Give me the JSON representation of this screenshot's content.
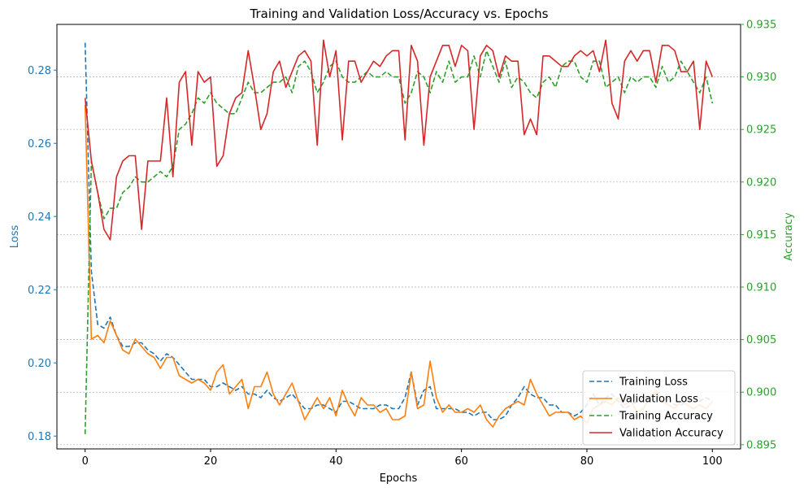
{
  "chart_data": {
    "type": "line",
    "title": "Training and Validation Loss/Accuracy vs. Epochs",
    "xlabel": "Epochs",
    "ylabel_left": "Loss",
    "ylabel_right": "Accuracy",
    "xlim": [
      -4.5,
      104.5
    ],
    "ylim_left": [
      0.1765,
      0.2925
    ],
    "ylim_right": [
      0.8946,
      0.935
    ],
    "xticks": [
      0,
      20,
      40,
      60,
      80,
      100
    ],
    "yticks_left": [
      0.18,
      0.2,
      0.22,
      0.24,
      0.26,
      0.28
    ],
    "yticks_right": [
      0.895,
      0.9,
      0.905,
      0.91,
      0.915,
      0.92,
      0.925,
      0.93,
      0.935
    ],
    "grid": "horizontal dashed (right axis)",
    "legend_position": "lower-right",
    "colors": {
      "training_loss": "#1f77b4",
      "validation_loss": "#ff7f0e",
      "training_accuracy": "#2ca02c",
      "validation_accuracy": "#d62728",
      "left_axis": "#1f77b4",
      "right_axis": "#2ca02c"
    },
    "series": [
      {
        "name": "Training Loss",
        "axis": "left",
        "style": "dashed",
        "x": [
          0,
          1,
          2,
          3,
          4,
          5,
          6,
          7,
          8,
          9,
          10,
          11,
          12,
          13,
          14,
          15,
          16,
          17,
          18,
          19,
          20,
          21,
          22,
          23,
          24,
          25,
          26,
          27,
          28,
          29,
          30,
          31,
          32,
          33,
          34,
          35,
          36,
          37,
          38,
          39,
          40,
          41,
          42,
          43,
          44,
          45,
          46,
          47,
          48,
          49,
          50,
          51,
          52,
          53,
          54,
          55,
          56,
          57,
          58,
          59,
          60,
          61,
          62,
          63,
          64,
          65,
          66,
          67,
          68,
          69,
          70,
          71,
          72,
          73,
          74,
          75,
          76,
          77,
          78,
          79,
          80,
          81,
          82,
          83,
          84,
          85,
          86,
          87,
          88,
          89,
          90,
          91,
          92,
          93,
          94,
          95,
          96,
          97,
          98,
          99,
          100
        ],
        "y": [
          0.2875,
          0.225,
          0.2105,
          0.2095,
          0.2125,
          0.2075,
          0.2045,
          0.2045,
          0.2055,
          0.2055,
          0.2035,
          0.2025,
          0.2005,
          0.2025,
          0.2015,
          0.1995,
          0.1975,
          0.1955,
          0.1955,
          0.1955,
          0.1935,
          0.1935,
          0.1945,
          0.1935,
          0.1925,
          0.1935,
          0.1915,
          0.1915,
          0.1905,
          0.1925,
          0.1905,
          0.1895,
          0.1905,
          0.1915,
          0.1895,
          0.1875,
          0.1875,
          0.1885,
          0.1885,
          0.1875,
          0.1865,
          0.1895,
          0.1895,
          0.1885,
          0.1875,
          0.1875,
          0.1875,
          0.1885,
          0.1885,
          0.1875,
          0.1875,
          0.1905,
          0.1975,
          0.1885,
          0.1925,
          0.1935,
          0.1875,
          0.1875,
          0.1875,
          0.1875,
          0.1865,
          0.1865,
          0.1855,
          0.1865,
          0.1865,
          0.1845,
          0.1845,
          0.1855,
          0.1885,
          0.1905,
          0.1935,
          0.1915,
          0.1905,
          0.1905,
          0.1885,
          0.1885,
          0.1865,
          0.1865,
          0.1855,
          0.1865,
          0.1885,
          0.1915,
          0.1885,
          0.1905,
          0.1915,
          0.1895,
          0.1875,
          0.1885,
          0.1895,
          0.1905,
          0.1905,
          0.1915,
          0.1895,
          0.1905,
          0.1885,
          0.1885,
          0.1895,
          0.1905,
          0.1895,
          0.1905,
          0.1895
        ]
      },
      {
        "name": "Validation Loss",
        "axis": "left",
        "style": "solid",
        "x": [
          0,
          1,
          2,
          3,
          4,
          5,
          6,
          7,
          8,
          9,
          10,
          11,
          12,
          13,
          14,
          15,
          16,
          17,
          18,
          19,
          20,
          21,
          22,
          23,
          24,
          25,
          26,
          27,
          28,
          29,
          30,
          31,
          32,
          33,
          34,
          35,
          36,
          37,
          38,
          39,
          40,
          41,
          42,
          43,
          44,
          45,
          46,
          47,
          48,
          49,
          50,
          51,
          52,
          53,
          54,
          55,
          56,
          57,
          58,
          59,
          60,
          61,
          62,
          63,
          64,
          65,
          66,
          67,
          68,
          69,
          70,
          71,
          72,
          73,
          74,
          75,
          76,
          77,
          78,
          79,
          80,
          81,
          82,
          83,
          84,
          85,
          86,
          87,
          88,
          89,
          90,
          91,
          92,
          93,
          94,
          95,
          96,
          97,
          98,
          99,
          100
        ],
        "y": [
          0.2705,
          0.2065,
          0.2075,
          0.2055,
          0.2115,
          0.2075,
          0.2035,
          0.2025,
          0.2065,
          0.2045,
          0.2025,
          0.2015,
          0.1985,
          0.2015,
          0.2015,
          0.1965,
          0.1955,
          0.1945,
          0.1955,
          0.1945,
          0.1925,
          0.1975,
          0.1995,
          0.1915,
          0.1935,
          0.1955,
          0.1875,
          0.1935,
          0.1935,
          0.1975,
          0.1915,
          0.1885,
          0.1915,
          0.1945,
          0.1895,
          0.1845,
          0.1875,
          0.1905,
          0.1875,
          0.1905,
          0.1855,
          0.1925,
          0.1885,
          0.1855,
          0.1905,
          0.1885,
          0.1885,
          0.1865,
          0.1875,
          0.1845,
          0.1845,
          0.1855,
          0.1975,
          0.1875,
          0.1885,
          0.2005,
          0.1905,
          0.1865,
          0.1885,
          0.1865,
          0.1865,
          0.1875,
          0.1865,
          0.1885,
          0.1845,
          0.1825,
          0.1855,
          0.1875,
          0.1885,
          0.1895,
          0.1885,
          0.1955,
          0.1915,
          0.1885,
          0.1855,
          0.1865,
          0.1865,
          0.1865,
          0.1845,
          0.1855,
          0.1835,
          0.1875,
          0.1885,
          0.1895,
          0.1885,
          0.1905,
          0.1885,
          0.1895,
          0.1865,
          0.1875,
          0.1905,
          0.1925,
          0.1895,
          0.1885,
          0.1875,
          0.1895,
          0.1885,
          0.1875,
          0.1885,
          0.1875,
          0.1895
        ]
      },
      {
        "name": "Training Accuracy",
        "axis": "right",
        "style": "dashed",
        "x": [
          0,
          1,
          2,
          3,
          4,
          5,
          6,
          7,
          8,
          9,
          10,
          11,
          12,
          13,
          14,
          15,
          16,
          17,
          18,
          19,
          20,
          21,
          22,
          23,
          24,
          25,
          26,
          27,
          28,
          29,
          30,
          31,
          32,
          33,
          34,
          35,
          36,
          37,
          38,
          39,
          40,
          41,
          42,
          43,
          44,
          45,
          46,
          47,
          48,
          49,
          50,
          51,
          52,
          53,
          54,
          55,
          56,
          57,
          58,
          59,
          60,
          61,
          62,
          63,
          64,
          65,
          66,
          67,
          68,
          69,
          70,
          71,
          72,
          73,
          74,
          75,
          76,
          77,
          78,
          79,
          80,
          81,
          82,
          83,
          84,
          85,
          86,
          87,
          88,
          89,
          90,
          91,
          92,
          93,
          94,
          95,
          96,
          97,
          98,
          99,
          100
        ],
        "y": [
          0.896,
          0.922,
          0.919,
          0.9165,
          0.9175,
          0.9175,
          0.919,
          0.9195,
          0.9205,
          0.92,
          0.92,
          0.9205,
          0.921,
          0.9205,
          0.9215,
          0.925,
          0.9255,
          0.9265,
          0.928,
          0.9275,
          0.9285,
          0.9275,
          0.927,
          0.9265,
          0.9265,
          0.928,
          0.9295,
          0.9285,
          0.9285,
          0.929,
          0.9295,
          0.9295,
          0.93,
          0.9285,
          0.931,
          0.9315,
          0.9305,
          0.9285,
          0.9295,
          0.931,
          0.9315,
          0.93,
          0.9295,
          0.9295,
          0.93,
          0.9305,
          0.93,
          0.93,
          0.9305,
          0.93,
          0.93,
          0.9275,
          0.9285,
          0.9305,
          0.93,
          0.9285,
          0.9305,
          0.9295,
          0.9315,
          0.9295,
          0.93,
          0.93,
          0.932,
          0.93,
          0.9325,
          0.931,
          0.9295,
          0.9315,
          0.929,
          0.93,
          0.9295,
          0.9285,
          0.928,
          0.9295,
          0.93,
          0.929,
          0.931,
          0.9315,
          0.9315,
          0.93,
          0.9295,
          0.9315,
          0.9315,
          0.929,
          0.9295,
          0.93,
          0.9285,
          0.93,
          0.9295,
          0.93,
          0.93,
          0.929,
          0.931,
          0.9295,
          0.93,
          0.9315,
          0.9305,
          0.9295,
          0.9285,
          0.93,
          0.9275
        ]
      },
      {
        "name": "Validation Accuracy",
        "axis": "right",
        "style": "solid",
        "x": [
          0,
          1,
          2,
          3,
          4,
          5,
          6,
          7,
          8,
          9,
          10,
          11,
          12,
          13,
          14,
          15,
          16,
          17,
          18,
          19,
          20,
          21,
          22,
          23,
          24,
          25,
          26,
          27,
          28,
          29,
          30,
          31,
          32,
          33,
          34,
          35,
          36,
          37,
          38,
          39,
          40,
          41,
          42,
          43,
          44,
          45,
          46,
          47,
          48,
          49,
          50,
          51,
          52,
          53,
          54,
          55,
          56,
          57,
          58,
          59,
          60,
          61,
          62,
          63,
          64,
          65,
          66,
          67,
          68,
          69,
          70,
          71,
          72,
          73,
          74,
          75,
          76,
          77,
          78,
          79,
          80,
          81,
          82,
          83,
          84,
          85,
          86,
          87,
          88,
          89,
          90,
          91,
          92,
          93,
          94,
          95,
          96,
          97,
          98,
          99,
          100
        ],
        "y": [
          0.928,
          0.922,
          0.919,
          0.9155,
          0.9145,
          0.9205,
          0.922,
          0.9225,
          0.9225,
          0.9155,
          0.922,
          0.922,
          0.922,
          0.928,
          0.9205,
          0.9295,
          0.9305,
          0.9235,
          0.9305,
          0.9295,
          0.93,
          0.9215,
          0.9225,
          0.9265,
          0.928,
          0.9285,
          0.9325,
          0.929,
          0.925,
          0.9265,
          0.9305,
          0.9315,
          0.929,
          0.9305,
          0.932,
          0.9325,
          0.9315,
          0.9235,
          0.9335,
          0.93,
          0.9325,
          0.924,
          0.9315,
          0.9315,
          0.9295,
          0.9305,
          0.9315,
          0.931,
          0.932,
          0.9325,
          0.9325,
          0.924,
          0.933,
          0.9315,
          0.9235,
          0.93,
          0.9315,
          0.933,
          0.933,
          0.931,
          0.933,
          0.9325,
          0.925,
          0.932,
          0.933,
          0.9325,
          0.93,
          0.932,
          0.9315,
          0.9315,
          0.9245,
          0.926,
          0.9245,
          0.932,
          0.932,
          0.9315,
          0.931,
          0.931,
          0.932,
          0.9325,
          0.932,
          0.9325,
          0.9305,
          0.9335,
          0.9275,
          0.926,
          0.9315,
          0.9325,
          0.9315,
          0.9325,
          0.9325,
          0.9295,
          0.933,
          0.933,
          0.9325,
          0.9305,
          0.9305,
          0.9315,
          0.925,
          0.9315,
          0.93
        ]
      }
    ]
  }
}
